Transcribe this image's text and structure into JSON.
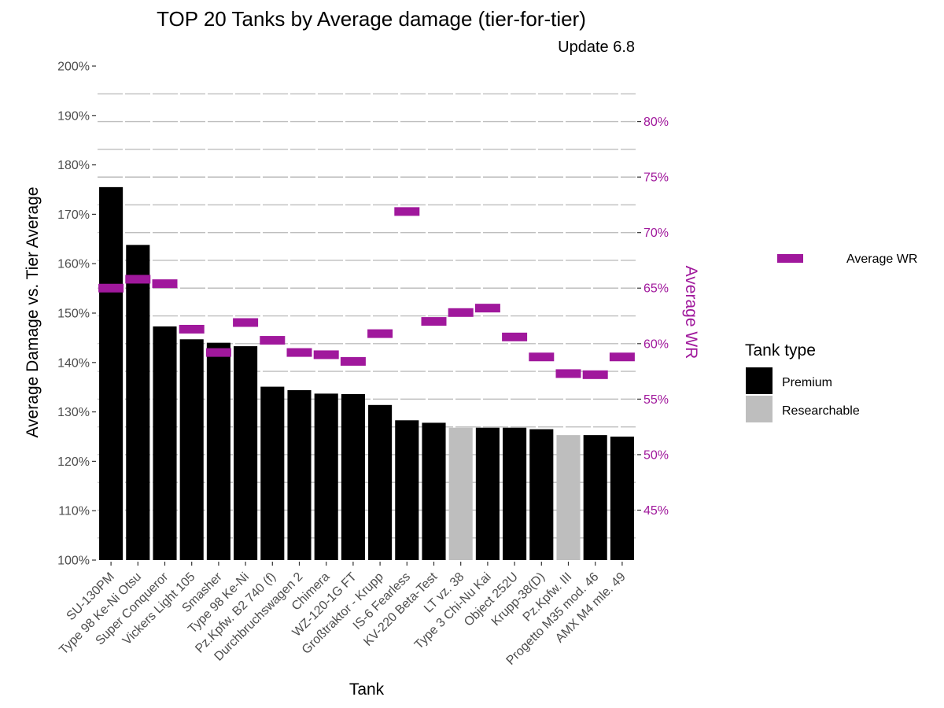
{
  "chart_data": {
    "type": "bar",
    "title": "TOP 20 Tanks by Average damage (tier-for-tier)",
    "subtitle": "Update 6.8",
    "xlabel": "Tank",
    "ylabel": "Average Damage vs. Tier Average",
    "y2label": "Average WR",
    "ylim": [
      100,
      200
    ],
    "y_ticks": [
      "100%",
      "110%",
      "120%",
      "130%",
      "140%",
      "150%",
      "160%",
      "170%",
      "180%",
      "190%",
      "200%"
    ],
    "y2lim": [
      40.5,
      85
    ],
    "y2_ticks": [
      "45%",
      "50%",
      "55%",
      "60%",
      "65%",
      "70%",
      "75%",
      "80%"
    ],
    "grid": true,
    "categories": [
      "SU-130PM",
      "Type 98 Ke-Ni Otsu",
      "Super Conqueror",
      "Vickers Light 105",
      "Smasher",
      "Type 98 Ke-Ni",
      "Pz.Kpfw. B2 740 (f)",
      "Durchbruchswagen 2",
      "Chimera",
      "WZ-120-1G FT",
      "Großtraktor - Krupp",
      "IS-6 Fearless",
      "KV-220 Beta-Test",
      "LT vz. 38",
      "Type 3 Chi-Nu Kai",
      "Object 252U",
      "Krupp-38(D)",
      "Pz.Kpfw. III",
      "Progetto M35 mod. 46",
      "AMX M4 mle. 49"
    ],
    "series": [
      {
        "name": "Average Damage vs. Tier Average",
        "values": [
          175.5,
          163.8,
          147.3,
          144.7,
          144.0,
          143.3,
          135.1,
          134.4,
          133.7,
          133.6,
          131.4,
          128.3,
          127.8,
          126.8,
          126.8,
          126.8,
          126.5,
          125.3,
          125.3,
          125.0
        ],
        "tank_type": [
          "Premium",
          "Premium",
          "Premium",
          "Premium",
          "Premium",
          "Premium",
          "Premium",
          "Premium",
          "Premium",
          "Premium",
          "Premium",
          "Premium",
          "Premium",
          "Researchable",
          "Premium",
          "Premium",
          "Premium",
          "Researchable",
          "Premium",
          "Premium"
        ]
      },
      {
        "name": "Average WR",
        "axis": "right",
        "values": [
          65.0,
          65.8,
          65.4,
          61.3,
          59.2,
          61.9,
          60.3,
          59.2,
          59.0,
          58.4,
          60.9,
          71.9,
          62.0,
          62.8,
          63.2,
          60.6,
          58.8,
          57.3,
          57.2,
          58.8
        ]
      }
    ],
    "legend": {
      "position": "right",
      "wr_label": "Average WR",
      "type_title": "Tank type",
      "type_items": [
        {
          "label": "Premium",
          "color": "#000000"
        },
        {
          "label": "Researchable",
          "color": "#bebebe"
        }
      ]
    },
    "colors": {
      "premium": "#000000",
      "researchable": "#bebebe",
      "wr": "#a0189c",
      "grid": "#bebebe"
    }
  }
}
